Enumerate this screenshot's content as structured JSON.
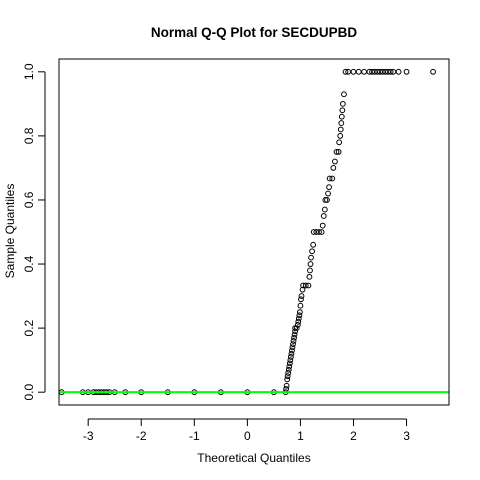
{
  "chart_data": {
    "type": "scatter",
    "title": "Normal Q-Q Plot for SECDUPBD",
    "xlabel": "Theoretical Quantiles",
    "ylabel": "Sample Quantiles",
    "xlim": [
      -3.55,
      3.8
    ],
    "ylim": [
      -0.04,
      1.04
    ],
    "x_ticks": [
      -3,
      -2,
      -1,
      0,
      1,
      2,
      3
    ],
    "x_tick_labels": [
      "-3",
      "-2",
      "-1",
      "0",
      "1",
      "2",
      "3"
    ],
    "y_ticks": [
      0.0,
      0.2,
      0.4,
      0.6,
      0.8,
      1.0
    ],
    "y_tick_labels": [
      "0.0",
      "0.2",
      "0.4",
      "0.6",
      "0.8",
      "1.0"
    ],
    "grid": false,
    "legend": "none",
    "reference_line": {
      "intercept": 0,
      "slope": 0,
      "color": "#00ff00"
    },
    "series": [
      {
        "marker": "open-circle",
        "color": "#000000",
        "points": [
          [
            -3.5,
            0
          ],
          [
            -3.1,
            0
          ],
          [
            -3.0,
            0
          ],
          [
            -2.9,
            0
          ],
          [
            -2.85,
            0
          ],
          [
            -2.8,
            0
          ],
          [
            -2.75,
            0
          ],
          [
            -2.7,
            0
          ],
          [
            -2.65,
            0
          ],
          [
            -2.6,
            0
          ],
          [
            -2.5,
            0
          ],
          [
            -2.3,
            0
          ],
          [
            -2.0,
            0
          ],
          [
            -1.5,
            0
          ],
          [
            -1.0,
            0
          ],
          [
            -0.5,
            0
          ],
          [
            0.0,
            0
          ],
          [
            0.5,
            0
          ],
          [
            0.72,
            0
          ],
          [
            0.73,
            0.01
          ],
          [
            0.74,
            0.02
          ],
          [
            0.75,
            0.04
          ],
          [
            0.76,
            0.05
          ],
          [
            0.77,
            0.06
          ],
          [
            0.78,
            0.07
          ],
          [
            0.79,
            0.08
          ],
          [
            0.8,
            0.09
          ],
          [
            0.81,
            0.1
          ],
          [
            0.82,
            0.11
          ],
          [
            0.83,
            0.12
          ],
          [
            0.84,
            0.13
          ],
          [
            0.85,
            0.14
          ],
          [
            0.86,
            0.15
          ],
          [
            0.87,
            0.16
          ],
          [
            0.88,
            0.17
          ],
          [
            0.89,
            0.18
          ],
          [
            0.9,
            0.19
          ],
          [
            0.9,
            0.2
          ],
          [
            0.93,
            0.2
          ],
          [
            0.95,
            0.21
          ],
          [
            0.96,
            0.22
          ],
          [
            0.97,
            0.23
          ],
          [
            0.98,
            0.24
          ],
          [
            0.99,
            0.25
          ],
          [
            1.0,
            0.27
          ],
          [
            1.01,
            0.29
          ],
          [
            1.02,
            0.3
          ],
          [
            1.04,
            0.32
          ],
          [
            1.05,
            0.333
          ],
          [
            1.1,
            0.333
          ],
          [
            1.15,
            0.333
          ],
          [
            1.17,
            0.36
          ],
          [
            1.18,
            0.38
          ],
          [
            1.19,
            0.4
          ],
          [
            1.2,
            0.42
          ],
          [
            1.22,
            0.44
          ],
          [
            1.24,
            0.46
          ],
          [
            1.25,
            0.5
          ],
          [
            1.3,
            0.5
          ],
          [
            1.35,
            0.5
          ],
          [
            1.4,
            0.5
          ],
          [
            1.42,
            0.52
          ],
          [
            1.44,
            0.55
          ],
          [
            1.46,
            0.57
          ],
          [
            1.47,
            0.6
          ],
          [
            1.5,
            0.6
          ],
          [
            1.52,
            0.62
          ],
          [
            1.54,
            0.64
          ],
          [
            1.55,
            0.667
          ],
          [
            1.6,
            0.667
          ],
          [
            1.62,
            0.7
          ],
          [
            1.65,
            0.72
          ],
          [
            1.68,
            0.75
          ],
          [
            1.72,
            0.75
          ],
          [
            1.73,
            0.78
          ],
          [
            1.75,
            0.8
          ],
          [
            1.76,
            0.82
          ],
          [
            1.77,
            0.84
          ],
          [
            1.78,
            0.86
          ],
          [
            1.79,
            0.88
          ],
          [
            1.8,
            0.9
          ],
          [
            1.82,
            0.93
          ],
          [
            1.85,
            1.0
          ],
          [
            1.9,
            1.0
          ],
          [
            2.0,
            1.0
          ],
          [
            2.1,
            1.0
          ],
          [
            2.2,
            1.0
          ],
          [
            2.3,
            1.0
          ],
          [
            2.35,
            1.0
          ],
          [
            2.4,
            1.0
          ],
          [
            2.45,
            1.0
          ],
          [
            2.5,
            1.0
          ],
          [
            2.55,
            1.0
          ],
          [
            2.6,
            1.0
          ],
          [
            2.65,
            1.0
          ],
          [
            2.7,
            1.0
          ],
          [
            2.75,
            1.0
          ],
          [
            2.85,
            1.0
          ],
          [
            3.0,
            1.0
          ],
          [
            3.5,
            1.0
          ]
        ]
      }
    ]
  }
}
